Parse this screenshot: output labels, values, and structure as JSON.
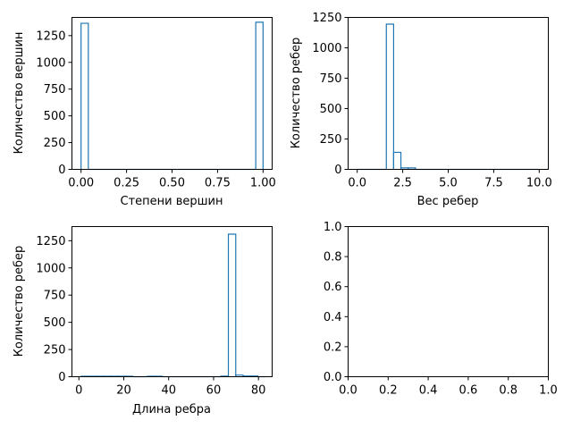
{
  "colors": {
    "series": "#1f77b4",
    "axes": "#000000",
    "background": "#ffffff"
  },
  "chart_data": [
    {
      "type": "histogram",
      "xlabel": "Степени вершин",
      "ylabel": "Количество вершин",
      "xlim": [
        -0.05,
        1.05
      ],
      "ylim": [
        0,
        1420
      ],
      "xticks": [
        0.0,
        0.25,
        0.5,
        0.75,
        1.0
      ],
      "xtick_labels": [
        "0.00",
        "0.25",
        "0.50",
        "0.75",
        "1.00"
      ],
      "yticks": [
        0,
        250,
        500,
        750,
        1000,
        1250
      ],
      "ytick_labels": [
        "0",
        "250",
        "500",
        "750",
        "1000",
        "1250"
      ],
      "bins": [
        0.0,
        0.04,
        0.08,
        0.12,
        0.16,
        0.2,
        0.24,
        0.28,
        0.32,
        0.36,
        0.4,
        0.44,
        0.48,
        0.52,
        0.56,
        0.6,
        0.64,
        0.68,
        0.72,
        0.76,
        0.8,
        0.84,
        0.88,
        0.92,
        0.96,
        1.0
      ],
      "counts": [
        1365,
        0,
        0,
        0,
        0,
        0,
        0,
        0,
        0,
        0,
        0,
        0,
        0,
        0,
        0,
        0,
        0,
        0,
        0,
        0,
        0,
        0,
        0,
        0,
        1375
      ]
    },
    {
      "type": "histogram",
      "xlabel": "Вес ребер",
      "ylabel": "Количество ребер",
      "xlim": [
        -0.5,
        10.5
      ],
      "ylim": [
        0,
        1250
      ],
      "xticks": [
        0.0,
        2.5,
        5.0,
        7.5,
        10.0
      ],
      "xtick_labels": [
        "0.0",
        "2.5",
        "5.0",
        "7.5",
        "10.0"
      ],
      "yticks": [
        0,
        250,
        500,
        750,
        1000,
        1250
      ],
      "ytick_labels": [
        "0",
        "250",
        "500",
        "750",
        "1000",
        "1250"
      ],
      "bins": [
        0.0,
        0.4,
        0.8,
        1.2,
        1.6,
        2.0,
        2.4,
        2.8,
        3.2,
        3.6,
        4.0,
        4.4,
        4.8,
        5.2,
        5.6,
        6.0,
        6.4,
        6.8,
        7.2,
        7.6,
        8.0,
        8.4,
        8.8,
        9.2,
        9.6,
        10.0
      ],
      "counts": [
        0,
        0,
        0,
        0,
        1195,
        140,
        12,
        12,
        0,
        0,
        0,
        0,
        0,
        0,
        0,
        0,
        0,
        0,
        0,
        0,
        0,
        0,
        0,
        0,
        0
      ]
    },
    {
      "type": "histogram",
      "xlabel": "Длина ребра",
      "ylabel": "Количество ребер",
      "xlim": [
        -3.1,
        86.1
      ],
      "ylim": [
        0,
        1380
      ],
      "xticks": [
        0,
        20,
        40,
        60,
        80
      ],
      "xtick_labels": [
        "0",
        "20",
        "40",
        "60",
        "80"
      ],
      "yticks": [
        0,
        250,
        500,
        750,
        1000,
        1250
      ],
      "ytick_labels": [
        "0",
        "250",
        "500",
        "750",
        "1000",
        "1250"
      ],
      "bins": [
        1.0,
        4.28,
        7.56,
        10.84,
        14.12,
        17.4,
        20.68,
        23.96,
        27.24,
        30.52,
        33.8,
        37.08,
        40.36,
        43.64,
        46.92,
        50.2,
        53.48,
        56.76,
        60.04,
        63.32,
        66.6,
        69.88,
        73.16,
        76.44,
        79.72,
        83.0
      ],
      "counts": [
        4,
        4,
        4,
        4,
        4,
        4,
        4,
        0,
        0,
        4,
        4,
        0,
        0,
        0,
        0,
        0,
        0,
        0,
        0,
        5,
        1310,
        15,
        6,
        6,
        0
      ]
    },
    {
      "type": "empty",
      "xlim": [
        0,
        1
      ],
      "ylim": [
        0,
        1
      ],
      "xticks": [
        0.0,
        0.2,
        0.4,
        0.6,
        0.8,
        1.0
      ],
      "xtick_labels": [
        "0.0",
        "0.2",
        "0.4",
        "0.6",
        "0.8",
        "1.0"
      ],
      "yticks": [
        0.0,
        0.2,
        0.4,
        0.6,
        0.8,
        1.0
      ],
      "ytick_labels": [
        "0.0",
        "0.2",
        "0.4",
        "0.6",
        "0.8",
        "1.0"
      ]
    }
  ]
}
